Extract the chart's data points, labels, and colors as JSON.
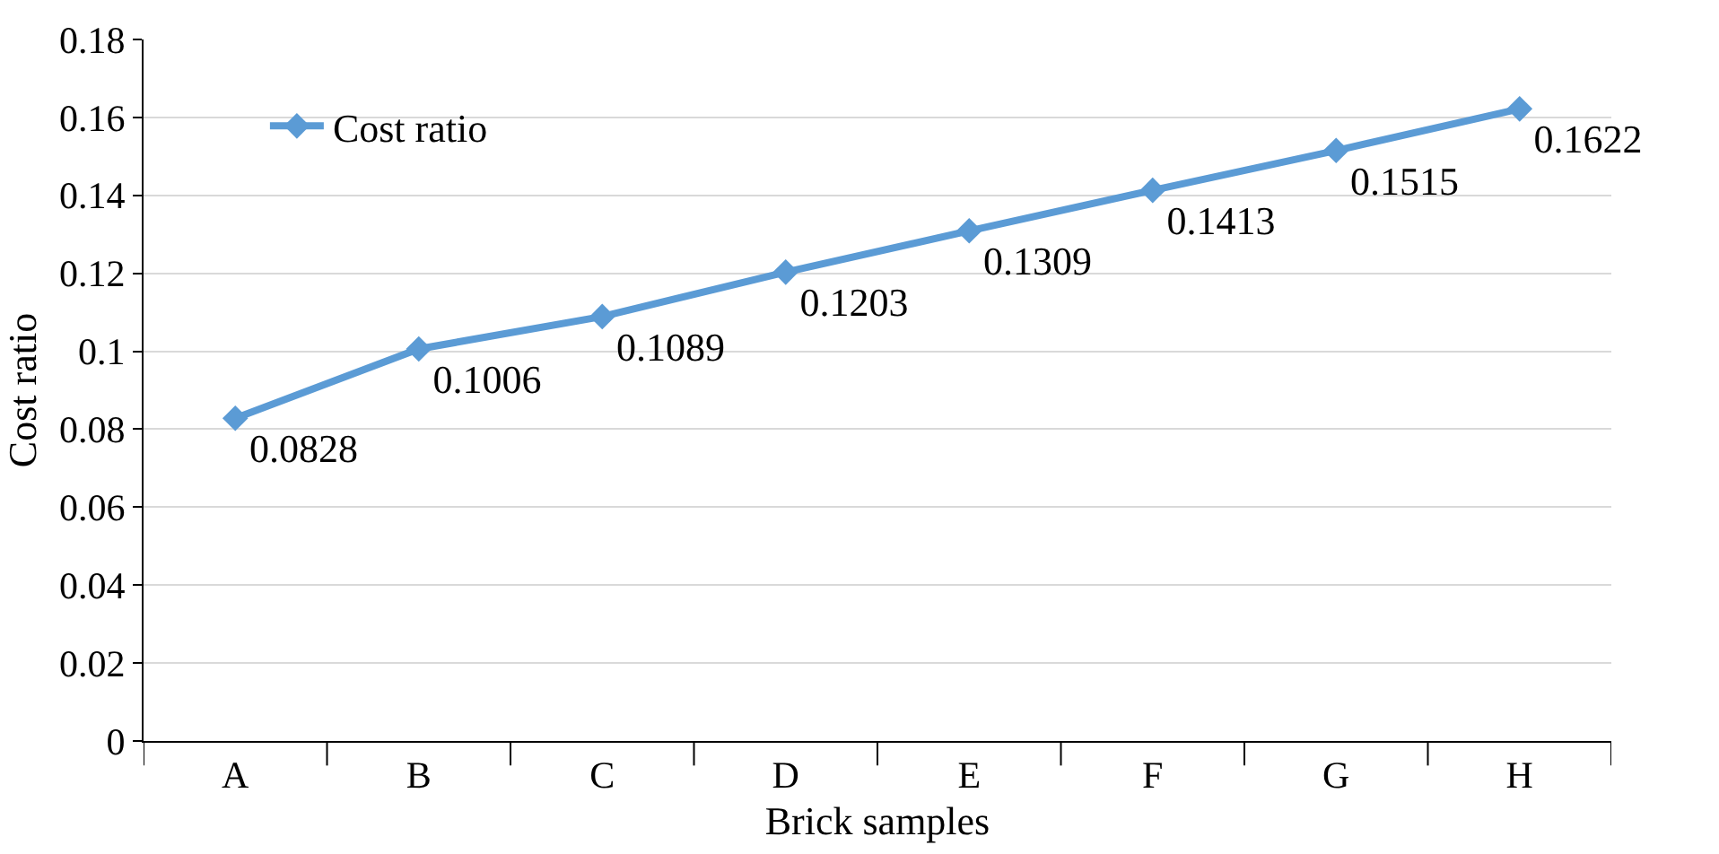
{
  "chart_data": {
    "type": "line",
    "xlabel": "Brick samples",
    "ylabel": "Cost ratio",
    "categories": [
      "A",
      "B",
      "C",
      "D",
      "E",
      "F",
      "G",
      "H"
    ],
    "series": [
      {
        "name": "Cost ratio",
        "color": "#5b9bd5",
        "values": [
          0.0828,
          0.1006,
          0.1089,
          0.1203,
          0.1309,
          0.1413,
          0.1515,
          0.1622
        ]
      }
    ],
    "ylim": [
      0,
      0.18
    ],
    "yticks": [
      0,
      0.02,
      0.04,
      0.06,
      0.08,
      0.1,
      0.12,
      0.14,
      0.16,
      0.18
    ],
    "grid": "y",
    "legend": "top left",
    "marker": "diamond",
    "line_style": "solid",
    "data_labels": true
  }
}
